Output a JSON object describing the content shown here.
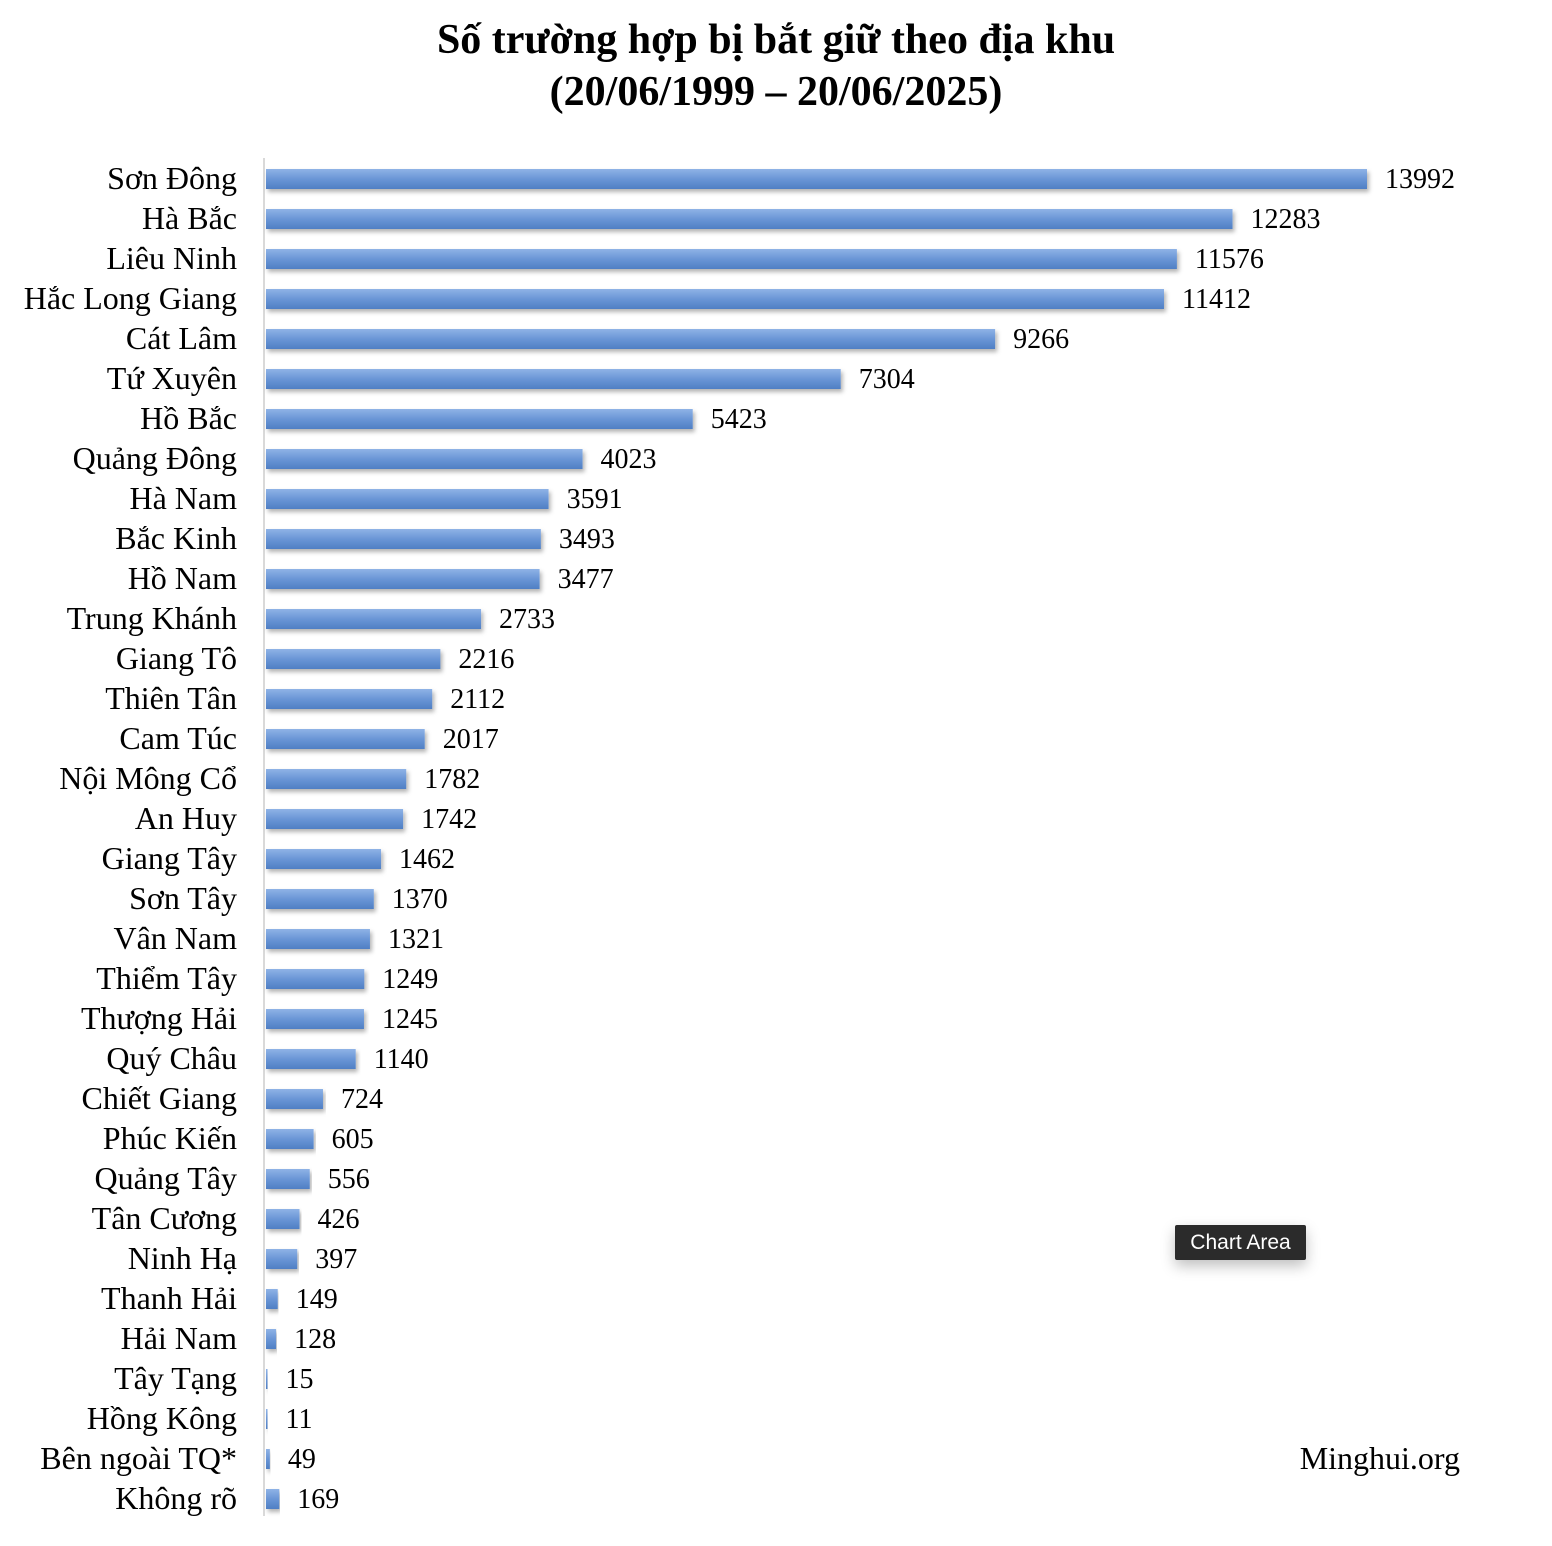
{
  "chart_data": {
    "type": "bar",
    "orientation": "horizontal",
    "title": "Số trường hợp bị bắt giữ theo địa khu",
    "subtitle": "(20/06/1999 – 20/06/2025)",
    "categories": [
      "Sơn Đông",
      "Hà Bắc",
      "Liêu Ninh",
      "Hắc Long Giang",
      "Cát Lâm",
      "Tứ Xuyên",
      "Hồ Bắc",
      "Quảng Đông",
      "Hà Nam",
      "Bắc Kinh",
      "Hồ Nam",
      "Trung Khánh",
      "Giang Tô",
      "Thiên Tân",
      "Cam Túc",
      "Nội Mông Cổ",
      "An Huy",
      "Giang Tây",
      "Sơn Tây",
      "Vân Nam",
      "Thiểm Tây",
      "Thượng Hải",
      "Quý Châu",
      "Chiết Giang",
      "Phúc Kiến",
      "Quảng Tây",
      "Tân Cương",
      "Ninh Hạ",
      "Thanh Hải",
      "Hải Nam",
      "Tây Tạng",
      "Hồng Kông",
      "Bên ngoài TQ*",
      "Không rõ"
    ],
    "values": [
      13992,
      12283,
      11576,
      11412,
      9266,
      7304,
      5423,
      4023,
      3591,
      3493,
      3477,
      2733,
      2216,
      2112,
      2017,
      1782,
      1742,
      1462,
      1370,
      1321,
      1249,
      1245,
      1140,
      724,
      605,
      556,
      426,
      397,
      149,
      128,
      15,
      11,
      49,
      169
    ],
    "value_labels": [
      "13992",
      "12283",
      "11576",
      "11412",
      "9266",
      "7304",
      "5423",
      "4023",
      "3591",
      "3493",
      "3477",
      "2733",
      "2216",
      "2112",
      "2017",
      "1782",
      "1742",
      "1462",
      "1370",
      "1321",
      "1249",
      "1245",
      "1140",
      "724",
      "605",
      "556",
      "426",
      "397",
      "149",
      "128",
      "15",
      "11",
      "49",
      "169"
    ],
    "xlim": [
      0,
      14000
    ],
    "grid": false,
    "bar_color": "#6a96d6",
    "data_labels": true
  },
  "source": "Minghui.org",
  "tooltip": "Chart Area"
}
